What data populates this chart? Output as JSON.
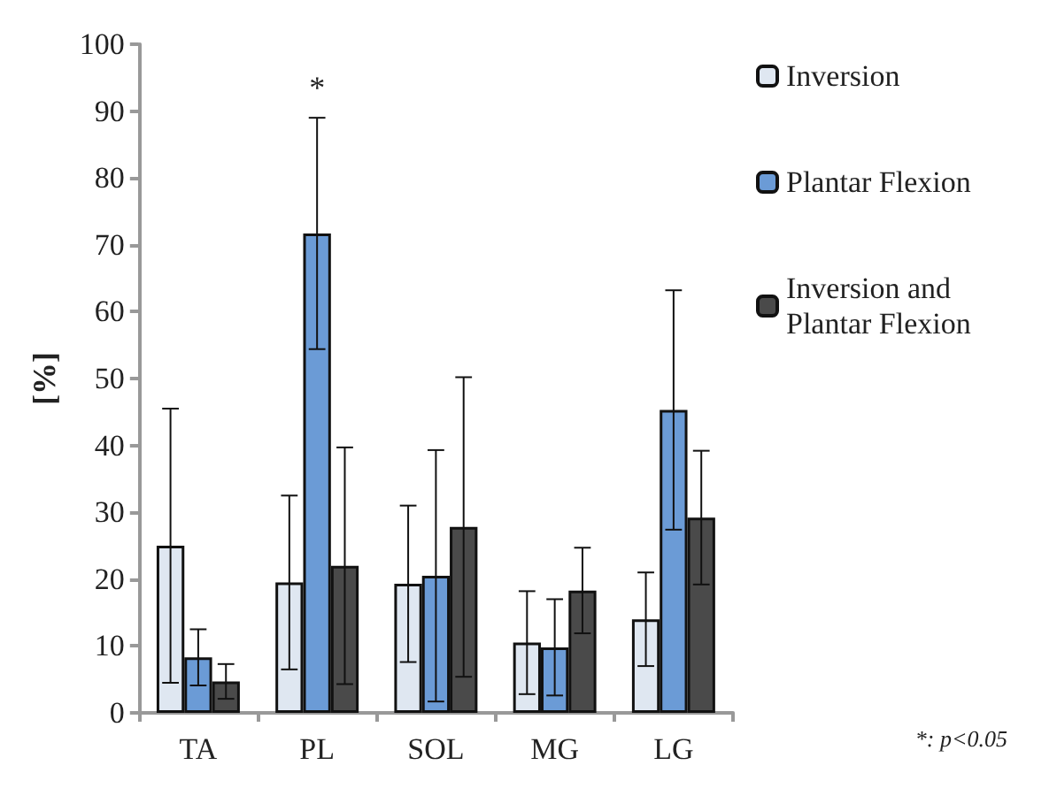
{
  "chart_data": {
    "type": "bar",
    "ylabel": "[%]",
    "categories": [
      "TA",
      "PL",
      "SOL",
      "MG",
      "LG"
    ],
    "series": [
      {
        "name": "Inversion",
        "color": "#dfe7f1",
        "values": [
          25,
          19.5,
          19.3,
          10.5,
          14
        ],
        "errors": [
          20.5,
          13,
          11.7,
          7.7,
          7
        ]
      },
      {
        "name": "Plantar Flexion",
        "color": "#6b9bd6",
        "values": [
          8.3,
          71.7,
          20.5,
          9.8,
          45.3
        ],
        "errors": [
          4.2,
          17.3,
          18.8,
          7.2,
          17.9
        ]
      },
      {
        "name": "Inversion and Plantar Flexion",
        "color": "#4a4a4a",
        "values": [
          4.7,
          22,
          27.8,
          18.3,
          29.2
        ],
        "errors": [
          2.6,
          17.7,
          22.4,
          6.4,
          10
        ]
      }
    ],
    "ylim": [
      0,
      100
    ],
    "yticks": [
      0,
      10,
      20,
      30,
      40,
      50,
      60,
      70,
      80,
      90,
      100
    ],
    "grid": false,
    "legend": "right",
    "annotations": [
      "*",
      "*: p<0.05"
    ]
  }
}
